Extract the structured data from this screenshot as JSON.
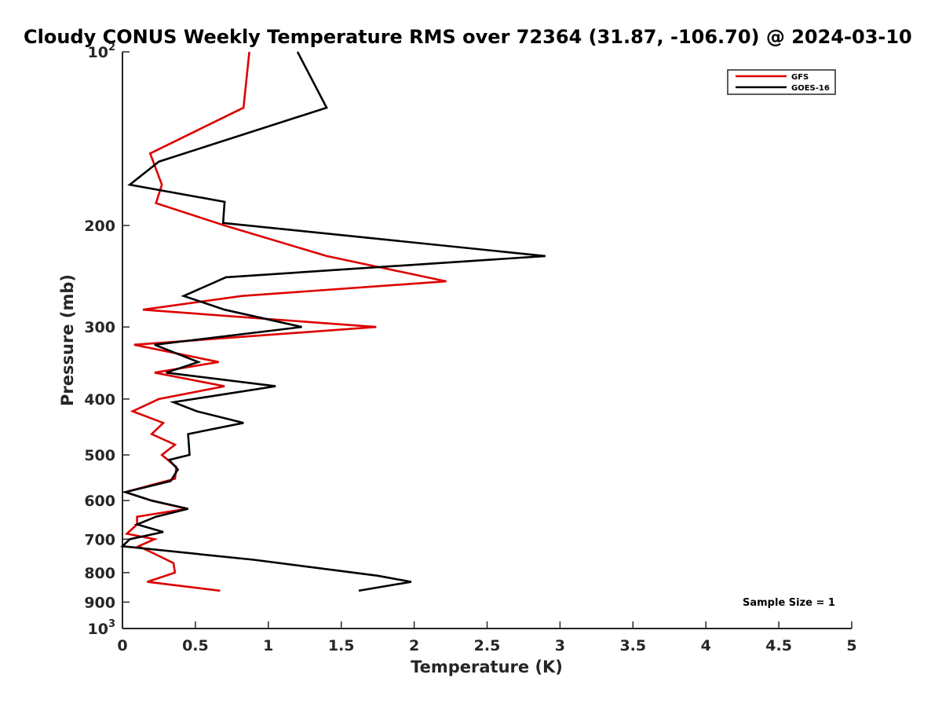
{
  "chart_data": {
    "type": "line",
    "title": "Cloudy CONUS Weekly Temperature RMS over 72364 (31.87, -106.70) @ 2024-03-10",
    "xlabel": "Temperature (K)",
    "ylabel": "Pressure (mb)",
    "xlim": [
      0,
      5
    ],
    "ylim": [
      100,
      1000
    ],
    "yscale": "log",
    "y_reversed": true,
    "grid": false,
    "legend_position": "top-right",
    "x_ticks": [
      "0",
      "0.5",
      "1",
      "1.5",
      "2",
      "2.5",
      "3",
      "3.5",
      "4",
      "4.5",
      "5"
    ],
    "y_ticks": [
      {
        "value": 100,
        "base": "10",
        "exp": "2"
      },
      {
        "value": 200,
        "label": "200"
      },
      {
        "value": 300,
        "label": "300"
      },
      {
        "value": 400,
        "label": "400"
      },
      {
        "value": 500,
        "label": "500"
      },
      {
        "value": 600,
        "label": "600"
      },
      {
        "value": 700,
        "label": "700"
      },
      {
        "value": 800,
        "label": "800"
      },
      {
        "value": 900,
        "label": "900"
      },
      {
        "value": 1000,
        "base": "10",
        "exp": "3"
      }
    ],
    "annotation": "Sample Size = 1",
    "series": [
      {
        "name": "GFS",
        "color": "#dd0000",
        "x": [
          0.87,
          0.83,
          0.19,
          0.27,
          0.23,
          0.7,
          1.4,
          2.22,
          0.82,
          0.14,
          1.74,
          0.08,
          0.66,
          0.22,
          0.7,
          0.25,
          0.07,
          0.28,
          0.2,
          0.36,
          0.27,
          0.37,
          0.36,
          0.02,
          0.2,
          0.44,
          0.1,
          0.1,
          0.03,
          0.22,
          0.11,
          0.21,
          0.35,
          0.36,
          0.17,
          0.67
        ],
        "y": [
          100,
          125,
          150,
          170,
          183,
          200,
          226,
          250,
          265,
          280,
          300,
          322,
          345,
          360,
          380,
          400,
          420,
          440,
          460,
          480,
          500,
          525,
          550,
          580,
          600,
          620,
          640,
          660,
          685,
          700,
          720,
          740,
          770,
          800,
          830,
          860
        ]
      },
      {
        "name": "GOES-16",
        "color": "#000000",
        "x": [
          1.2,
          1.4,
          0.25,
          0.05,
          0.7,
          0.69,
          2.9,
          0.71,
          0.42,
          0.7,
          1.23,
          0.22,
          0.52,
          0.3,
          1.05,
          0.35,
          0.51,
          0.83,
          0.45,
          0.46,
          0.32,
          0.38,
          0.33,
          0.02,
          0.2,
          0.45,
          0.23,
          0.1,
          0.28,
          0.05,
          0.0,
          0.9,
          1.75,
          1.98,
          1.62
        ],
        "y": [
          100,
          125,
          155,
          170,
          182,
          198,
          226,
          246,
          265,
          280,
          300,
          322,
          345,
          360,
          380,
          405,
          420,
          440,
          460,
          500,
          510,
          530,
          555,
          580,
          600,
          620,
          640,
          660,
          680,
          700,
          720,
          760,
          810,
          830,
          860
        ]
      }
    ]
  }
}
